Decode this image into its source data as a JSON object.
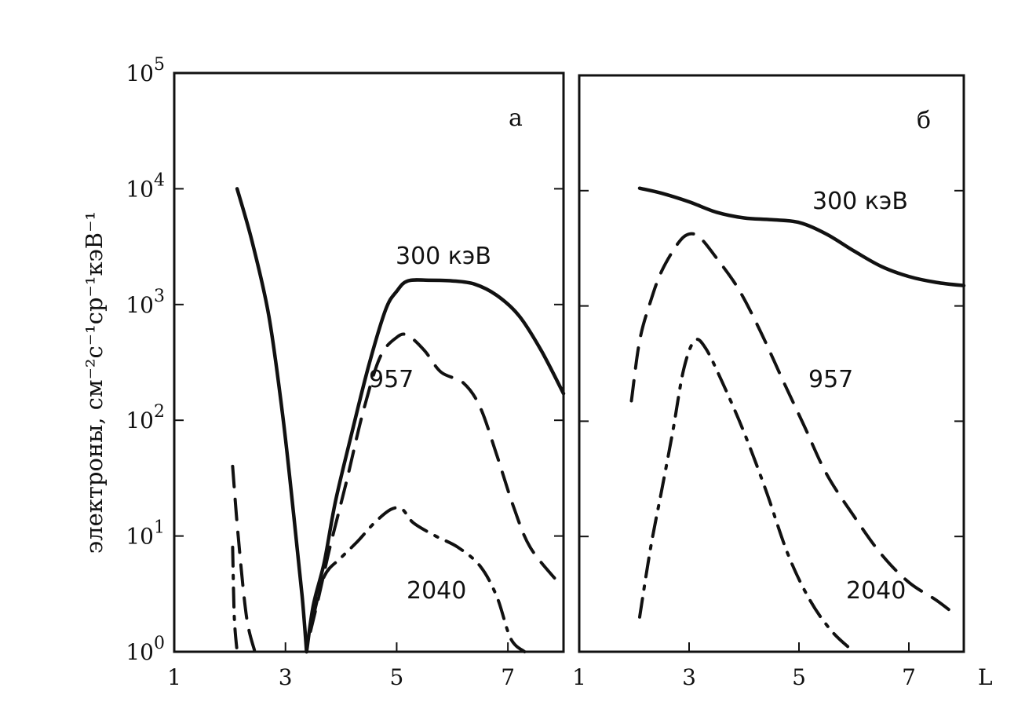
{
  "chart_data": [
    {
      "type": "line",
      "panel_label": "а",
      "xlabel": "",
      "ylabel": "электроны, см⁻²с⁻¹ср⁻¹кэВ⁻¹",
      "xlim": [
        1,
        8
      ],
      "ylim": [
        1,
        100000
      ],
      "yscale": "log",
      "xticks": [
        1,
        3,
        5,
        7
      ],
      "yticks": [
        {
          "value": 1,
          "base": "10",
          "exp": "0"
        },
        {
          "value": 10,
          "base": "10",
          "exp": "1"
        },
        {
          "value": 100,
          "base": "10",
          "exp": "2"
        },
        {
          "value": 1000,
          "base": "10",
          "exp": "3"
        },
        {
          "value": 10000,
          "base": "10",
          "exp": "4"
        },
        {
          "value": 100000,
          "base": "10",
          "exp": "5"
        }
      ],
      "grid": false,
      "series": [
        {
          "name": "300 кэВ",
          "style": "solid",
          "segments": [
            {
              "x": [
                2.13,
                2.4,
                2.7,
                2.95,
                3.15,
                3.3,
                3.38
              ],
              "y": [
                10000,
                3500,
                800,
                110,
                15,
                3,
                1
              ]
            },
            {
              "x": [
                3.38,
                3.5,
                3.7,
                3.9,
                4.2,
                4.5,
                4.8,
                5.0,
                5.2,
                5.6,
                6.0,
                6.4,
                6.8,
                7.2,
                7.6,
                8.0
              ],
              "y": [
                1,
                2.5,
                6,
                20,
                80,
                300,
                900,
                1300,
                1600,
                1620,
                1600,
                1500,
                1200,
                800,
                400,
                170
              ]
            }
          ]
        },
        {
          "name": "957",
          "style": "dashed",
          "segments": [
            {
              "x": [
                2.05,
                2.15,
                2.3,
                2.45
              ],
              "y": [
                40,
                10,
                2,
                1
              ]
            },
            {
              "x": [
                3.45,
                3.6,
                3.8,
                4.1,
                4.4,
                4.7,
                5.0,
                5.2,
                5.5,
                5.8,
                6.2,
                6.5,
                6.8,
                7.1,
                7.4,
                7.9
              ],
              "y": [
                1.5,
                3,
                8,
                30,
                120,
                350,
                520,
                540,
                400,
                260,
                210,
                130,
                50,
                18,
                8,
                4
              ]
            }
          ]
        },
        {
          "name": "2040",
          "style": "dashdot",
          "segments": [
            {
              "x": [
                2.05,
                2.08,
                2.13
              ],
              "y": [
                8,
                2,
                1
              ]
            },
            {
              "x": [
                3.5,
                3.7,
                4.0,
                4.3,
                4.6,
                4.9,
                5.1,
                5.3,
                5.7,
                6.1,
                6.5,
                6.8,
                7.05,
                7.3
              ],
              "y": [
                2,
                4.5,
                6.5,
                9,
                13,
                17,
                17,
                13,
                10,
                8,
                5.5,
                3,
                1.3,
                1
              ]
            }
          ]
        }
      ],
      "annotations": [
        "300 кэВ",
        "957",
        "2040"
      ]
    },
    {
      "type": "line",
      "panel_label": "б",
      "xlabel": "L",
      "ylabel": "",
      "xlim": [
        1,
        8
      ],
      "ylim": [
        1,
        100000
      ],
      "yscale": "log",
      "xticks": [
        1,
        3,
        5,
        7
      ],
      "grid": false,
      "series": [
        {
          "name": "300 кэВ",
          "style": "solid",
          "segments": [
            {
              "x": [
                2.1,
                2.5,
                3.0,
                3.5,
                4.0,
                4.5,
                5.0,
                5.5,
                6.0,
                6.5,
                7.0,
                7.5,
                8.0
              ],
              "y": [
                10500,
                9500,
                8000,
                6500,
                5800,
                5600,
                5300,
                4200,
                3000,
                2200,
                1800,
                1600,
                1500
              ]
            }
          ]
        },
        {
          "name": "957",
          "style": "dashed",
          "segments": [
            {
              "x": [
                1.95,
                2.1,
                2.3,
                2.5,
                2.8,
                3.0,
                3.2,
                3.5,
                3.9,
                4.3,
                4.7,
                5.1,
                5.5,
                6.0,
                6.5,
                7.0,
                7.5,
                7.9
              ],
              "y": [
                150,
                500,
                1100,
                2000,
                3500,
                4200,
                3900,
                2600,
                1400,
                600,
                230,
                90,
                35,
                15,
                7,
                4,
                2.8,
                2
              ]
            }
          ]
        },
        {
          "name": "2040",
          "style": "dashdot",
          "segments": [
            {
              "x": [
                2.1,
                2.3,
                2.5,
                2.7,
                2.9,
                3.1,
                3.3,
                3.6,
                4.0,
                4.4,
                4.8,
                5.2,
                5.6,
                6.0
              ],
              "y": [
                2,
                8,
                25,
                80,
                280,
                500,
                430,
                220,
                80,
                25,
                7,
                2.8,
                1.5,
                1
              ]
            }
          ]
        }
      ],
      "annotations": [
        "300 кэВ",
        "957",
        "2040"
      ]
    }
  ]
}
